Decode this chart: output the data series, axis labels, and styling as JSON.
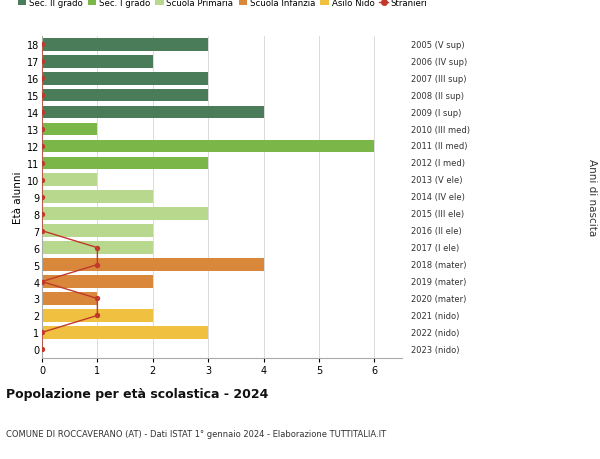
{
  "ages": [
    18,
    17,
    16,
    15,
    14,
    13,
    12,
    11,
    10,
    9,
    8,
    7,
    6,
    5,
    4,
    3,
    2,
    1,
    0
  ],
  "years": [
    "2005 (V sup)",
    "2006 (IV sup)",
    "2007 (III sup)",
    "2008 (II sup)",
    "2009 (I sup)",
    "2010 (III med)",
    "2011 (II med)",
    "2012 (I med)",
    "2013 (V ele)",
    "2014 (IV ele)",
    "2015 (III ele)",
    "2016 (II ele)",
    "2017 (I ele)",
    "2018 (mater)",
    "2019 (mater)",
    "2020 (mater)",
    "2021 (nido)",
    "2022 (nido)",
    "2023 (nido)"
  ],
  "bar_values": [
    3,
    2,
    3,
    3,
    4,
    1,
    6,
    3,
    1,
    2,
    3,
    2,
    2,
    4,
    2,
    1,
    2,
    3,
    0
  ],
  "bar_colors": [
    "#4a7c59",
    "#4a7c59",
    "#4a7c59",
    "#4a7c59",
    "#4a7c59",
    "#7ab648",
    "#7ab648",
    "#7ab648",
    "#b8d98d",
    "#b8d98d",
    "#b8d98d",
    "#b8d98d",
    "#b8d98d",
    "#d9873a",
    "#d9873a",
    "#d9873a",
    "#f0c040",
    "#f0c040",
    "#f0c040"
  ],
  "stranieri_values": [
    0,
    0,
    0,
    0,
    0,
    0,
    0,
    0,
    0,
    0,
    0,
    0,
    1,
    1,
    0,
    1,
    1,
    0,
    0
  ],
  "legend_labels": [
    "Sec. II grado",
    "Sec. I grado",
    "Scuola Primaria",
    "Scuola Infanzia",
    "Asilo Nido",
    "Stranieri"
  ],
  "legend_colors": [
    "#4a7c59",
    "#7ab648",
    "#b8d98d",
    "#d9873a",
    "#f0c040",
    "#c0392b"
  ],
  "stranieri_color": "#c0392b",
  "title": "Popolazione per età scolastica - 2024",
  "subtitle": "COMUNE DI ROCCAVERANO (AT) - Dati ISTAT 1° gennaio 2024 - Elaborazione TUTTITALIA.IT",
  "ylabel_left": "Età alunni",
  "ylabel_right": "Anni di nascita",
  "bg_color": "#ffffff",
  "grid_color": "#cccccc",
  "bar_height": 0.75,
  "xlim": [
    0,
    6.5
  ],
  "ylim": [
    -0.5,
    18.5
  ]
}
